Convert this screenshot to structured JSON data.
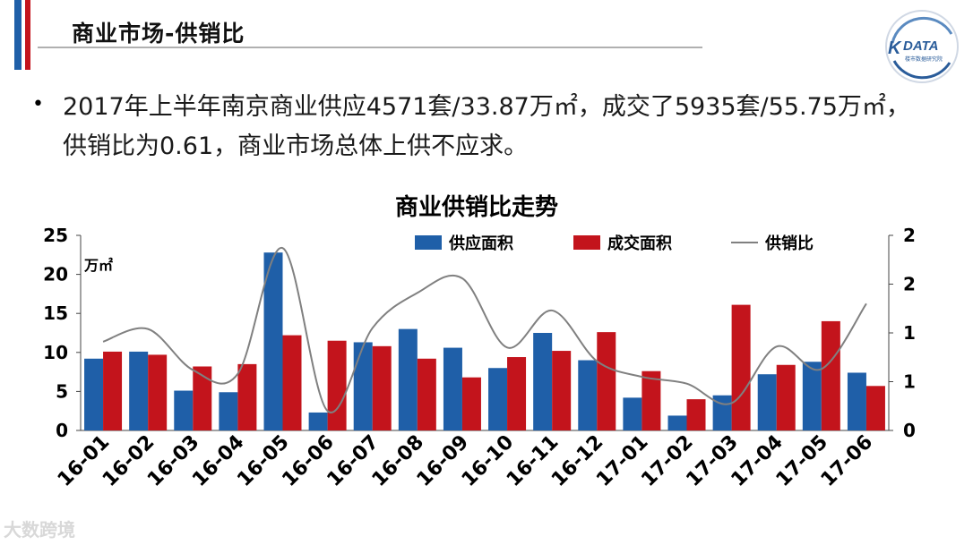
{
  "slide": {
    "title": "商业市场-供销比",
    "bullet": "•",
    "summary": "2017年上半年南京商业供应4571套/33.87万㎡，成交了5935套/55.75万㎡，供销比为0.61，商业市场总体上供不应求。",
    "footer_brand": "大数跨境",
    "logo_text": "DATA",
    "logo_letter": "K",
    "logo_subtext": "楼市数据研究院"
  },
  "colors": {
    "accent_blue": "#1f5fa8",
    "accent_red": "#c3141c",
    "supply": "#1f5fa8",
    "deal": "#c3141c",
    "ratio_line": "#808080"
  },
  "chart_data": {
    "type": "bar",
    "title": "商业供销比走势",
    "y_unit": "万㎡",
    "categories": [
      "16-01",
      "16-02",
      "16-03",
      "16-04",
      "16-05",
      "16-06",
      "16-07",
      "16-08",
      "16-09",
      "16-10",
      "16-11",
      "16-12",
      "17-01",
      "17-02",
      "17-03",
      "17-04",
      "17-05",
      "17-06"
    ],
    "series": [
      {
        "name": "供应面积",
        "type": "bar",
        "axis": "left",
        "values": [
          9.2,
          10.1,
          5.1,
          4.9,
          22.8,
          2.3,
          11.3,
          13.0,
          10.6,
          8.0,
          12.5,
          9.0,
          4.2,
          1.9,
          4.5,
          7.2,
          8.8,
          7.4
        ]
      },
      {
        "name": "成交面积",
        "type": "bar",
        "axis": "left",
        "values": [
          10.1,
          9.7,
          8.2,
          8.5,
          12.2,
          11.5,
          10.8,
          9.2,
          6.8,
          9.4,
          10.2,
          12.6,
          7.6,
          4.0,
          16.1,
          8.4,
          14.0,
          5.7
        ]
      },
      {
        "name": "供销比",
        "type": "line",
        "axis": "right",
        "values": [
          0.91,
          1.04,
          0.62,
          0.58,
          1.87,
          0.2,
          1.05,
          1.41,
          1.56,
          0.85,
          1.23,
          0.71,
          0.55,
          0.48,
          0.28,
          0.86,
          0.63,
          1.3
        ]
      }
    ],
    "y_left": {
      "range": [
        0,
        25
      ],
      "ticks": [
        "0",
        "5",
        "10",
        "15",
        "20",
        "25"
      ]
    },
    "y_right": {
      "range": [
        0,
        2
      ],
      "ticks": [
        "0",
        "1",
        "1",
        "2",
        "2"
      ]
    },
    "legend_position": "top",
    "grid": false
  }
}
